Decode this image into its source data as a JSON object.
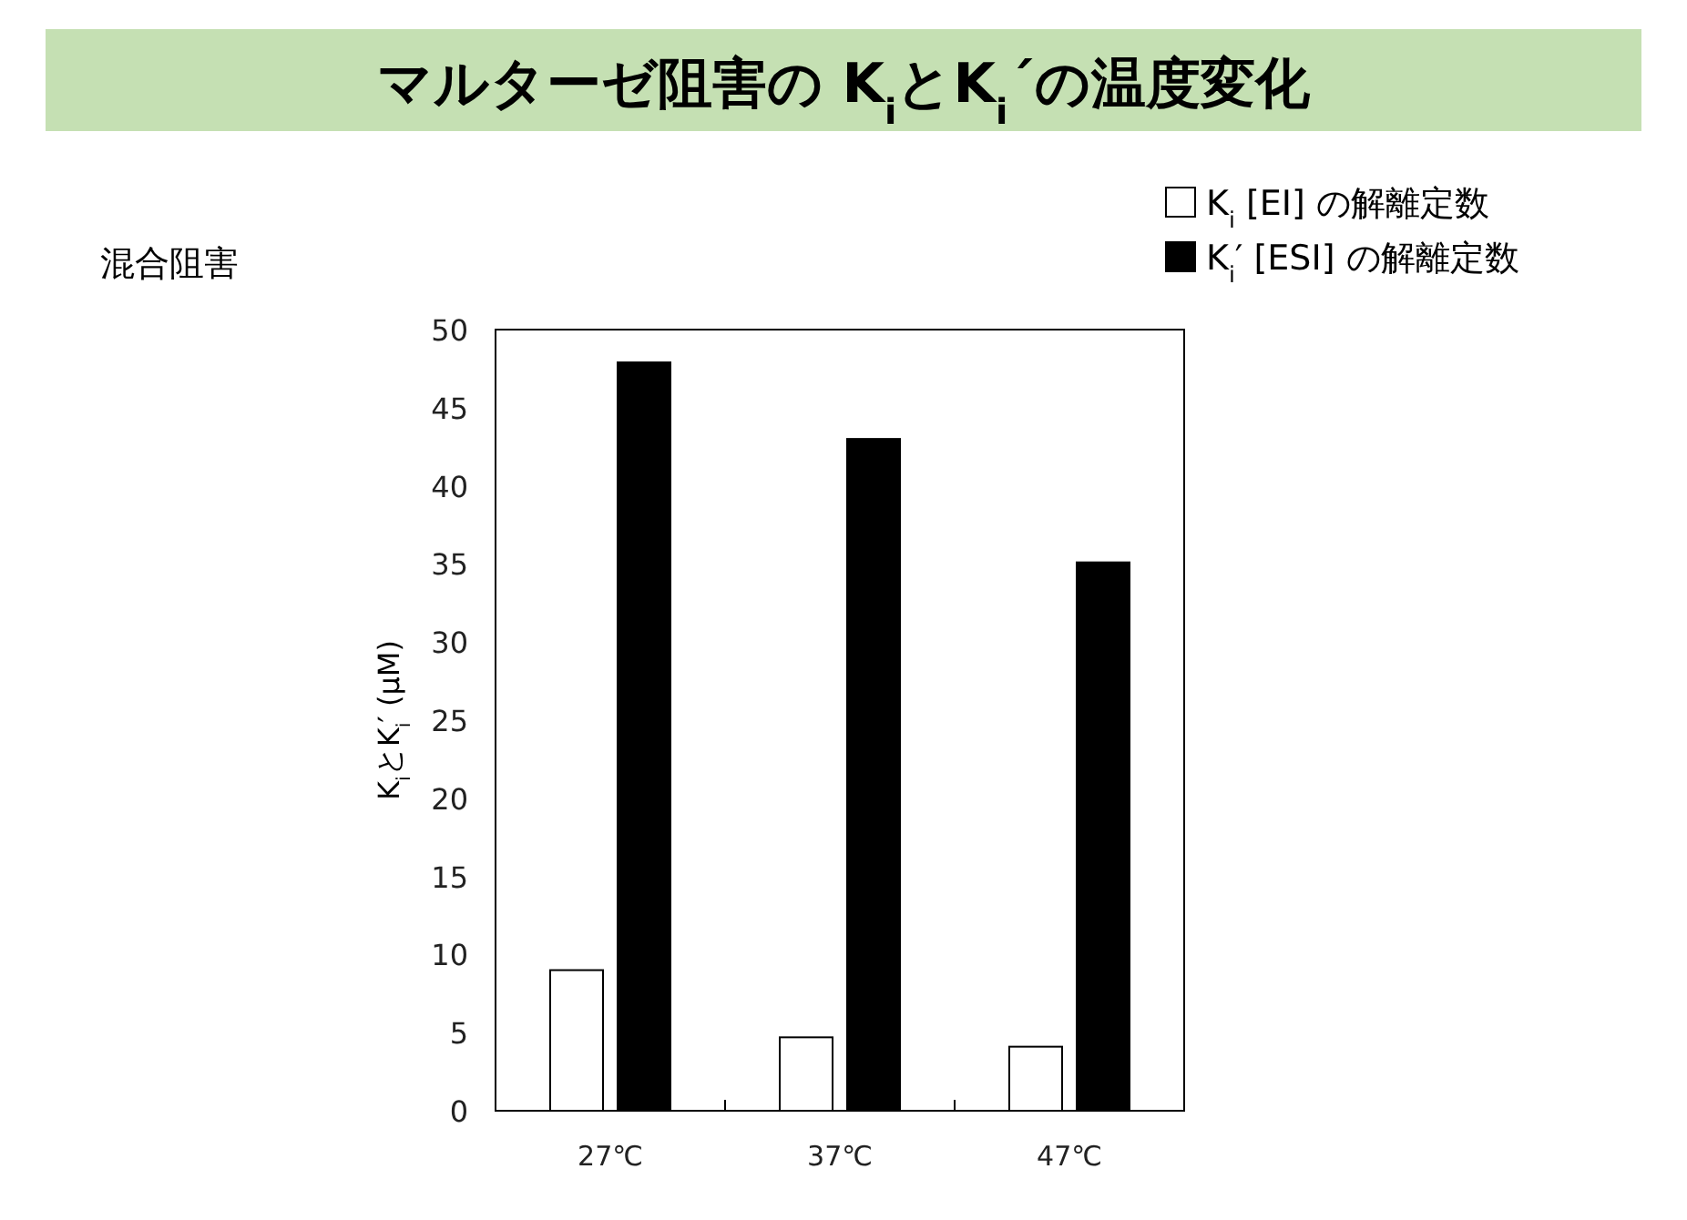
{
  "chart_data": {
    "type": "bar",
    "title": "マルターゼ阻害の K$_{i}$とK$_{i}$´の温度変化",
    "subtitle": "混合阻害",
    "ylabel": "K$_{i}$とK$_{i}$′ (μM)",
    "categories": [
      "27℃",
      "37℃",
      "47℃"
    ],
    "series": [
      {
        "name": "K$_{i}$ [EI] の解離定数",
        "color": "#ffffff",
        "values": [
          9.0,
          4.7,
          4.1
        ]
      },
      {
        "name": "K$_{i}$′ [ESI] の解離定数",
        "color": "#000000",
        "values": [
          47.9,
          43.0,
          35.1
        ]
      }
    ],
    "ylim": [
      0,
      50
    ],
    "yticks": [
      0,
      5,
      10,
      15,
      20,
      25,
      30,
      35,
      40,
      45,
      50
    ],
    "grid": false,
    "legend": "top right"
  }
}
